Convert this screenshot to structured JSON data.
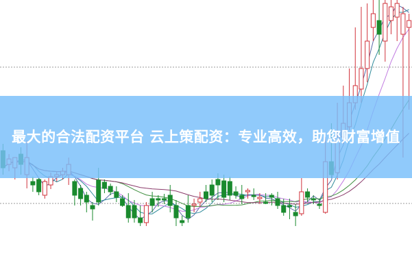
{
  "banner": {
    "title": "最大的合法配资平台 云上策配资：专业高效，助您财富增值"
  },
  "colors": {
    "up": "#d0313a",
    "down": "#1a8a2e",
    "banner": "#78befa",
    "ma_lines": [
      "#5a6aa8",
      "#2e8a9a",
      "#c07ae0",
      "#3f8f3f",
      "#8a3a6a"
    ]
  }
}
